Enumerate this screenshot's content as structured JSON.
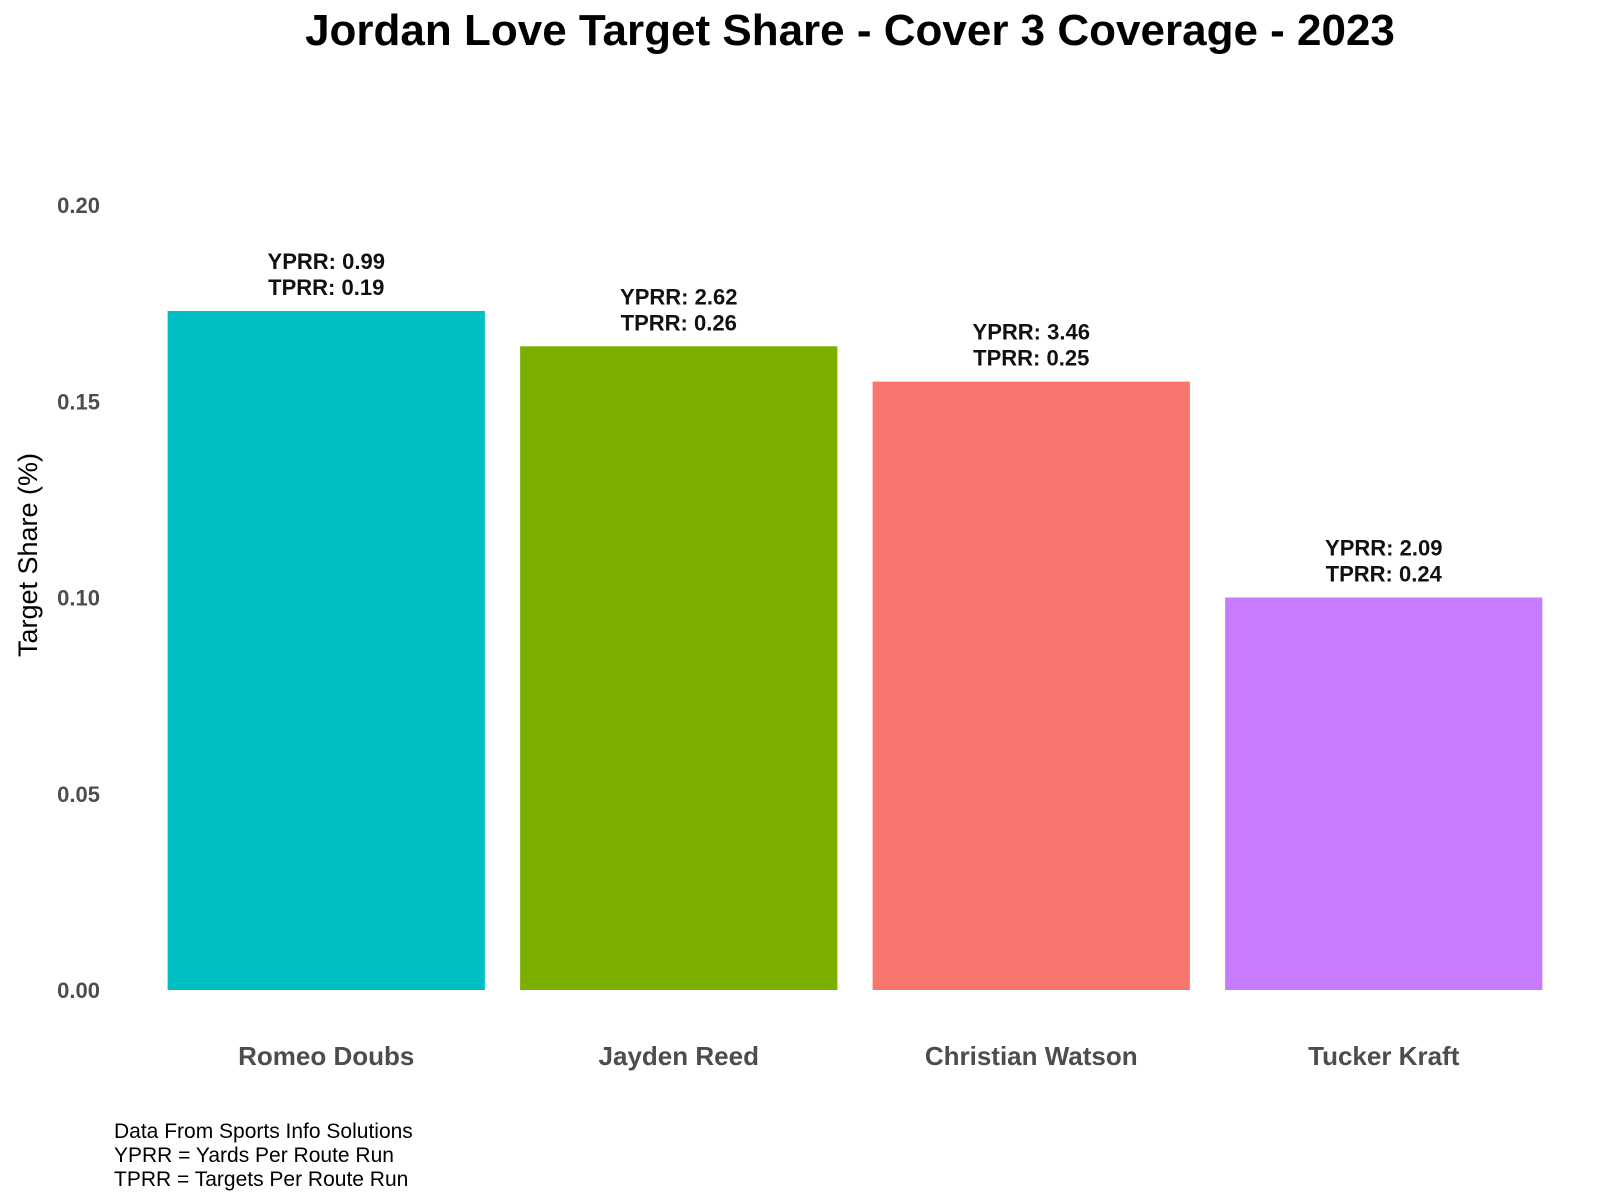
{
  "chart_data": {
    "type": "bar",
    "title": "Jordan Love Target Share - Cover 3 Coverage - 2023",
    "xlabel": "",
    "ylabel": "Target Share (%)",
    "ylim": [
      0,
      0.2
    ],
    "yticks": [
      "0.00",
      "0.05",
      "0.10",
      "0.15",
      "0.20"
    ],
    "grid": false,
    "legend": "none",
    "categories": [
      "Romeo Doubs",
      "Jayden Reed",
      "Christian Watson",
      "Tucker Kraft"
    ],
    "values": [
      0.173,
      0.164,
      0.155,
      0.1
    ],
    "colors": [
      "#00BFC4",
      "#7CAE00",
      "#F8766D",
      "#C77CFF"
    ],
    "annotations": [
      [
        "YPRR: 0.99",
        "TPRR: 0.19"
      ],
      [
        "YPRR: 2.62",
        "TPRR: 0.26"
      ],
      [
        "YPRR: 3.46",
        "TPRR: 0.25"
      ],
      [
        "YPRR: 2.09",
        "TPRR: 0.24"
      ]
    ]
  },
  "footnotes": [
    "Data From Sports Info Solutions",
    "YPRR = Yards Per Route Run",
    "TPRR = Targets Per Route Run"
  ]
}
